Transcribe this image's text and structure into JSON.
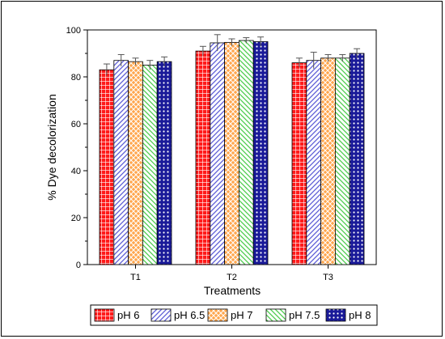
{
  "chart_data": {
    "type": "bar",
    "categories": [
      "T1",
      "T2",
      "T3"
    ],
    "series": [
      {
        "name": "pH 6",
        "values": [
          83.0,
          91.0,
          86.0
        ],
        "errors": [
          2.5,
          2.0,
          2.0
        ],
        "color": "#ff1a1a",
        "pattern": "grid"
      },
      {
        "name": "pH 6.5",
        "values": [
          87.0,
          94.5,
          87.0
        ],
        "errors": [
          2.5,
          3.5,
          3.5
        ],
        "color": "#9999ff",
        "pattern": "diag-right"
      },
      {
        "name": "pH 7",
        "values": [
          86.5,
          94.7,
          88.0
        ],
        "errors": [
          1.5,
          1.5,
          1.5
        ],
        "color": "#ffa64d",
        "pattern": "cross"
      },
      {
        "name": "pH 7.5",
        "values": [
          85.0,
          95.5,
          88.0
        ],
        "errors": [
          2.0,
          1.2,
          1.5
        ],
        "color": "#99ff99",
        "pattern": "diag-left"
      },
      {
        "name": "pH 8",
        "values": [
          86.5,
          95.0,
          90.0
        ],
        "errors": [
          2.0,
          2.0,
          2.0
        ],
        "color": "#1a1a99",
        "pattern": "dots"
      }
    ],
    "title": "",
    "xlabel": "Treatments",
    "ylabel": "% Dye decolorization",
    "ylim": [
      0,
      100
    ],
    "yticks": [
      0,
      20,
      40,
      60,
      80,
      100
    ],
    "grid": false,
    "legend_position": "bottom"
  }
}
